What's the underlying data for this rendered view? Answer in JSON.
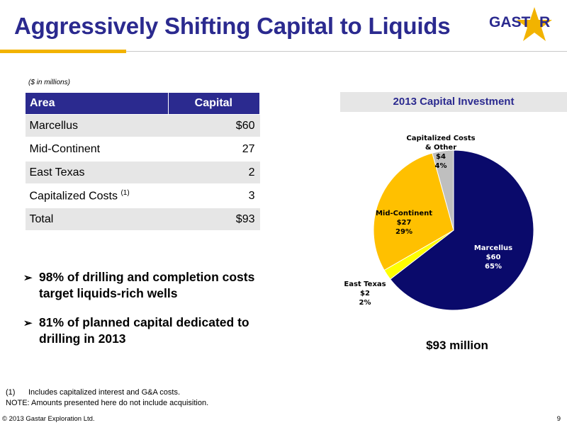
{
  "title": "Aggressively Shifting Capital to Liquids",
  "logo": {
    "text_left": "GAST",
    "text_right": "R"
  },
  "units_note": "($ in millions)",
  "table": {
    "headers": [
      "Area",
      "Capital"
    ],
    "rows": [
      {
        "area": "Marcellus",
        "capital": "$60"
      },
      {
        "area": "Mid-Continent",
        "capital": "27"
      },
      {
        "area": "East Texas",
        "capital": "2"
      },
      {
        "area": "Capitalized Costs",
        "footnote_mark": "(1)",
        "capital": "3"
      },
      {
        "area": "Total",
        "capital": "$93"
      }
    ]
  },
  "bullets": [
    {
      "line1": "98% of drilling and completion costs",
      "line2": "target liquids-rich wells"
    },
    {
      "line1": "81% of planned capital dedicated to",
      "line2": "drilling in 2013"
    }
  ],
  "chart_title": "2013 Capital Investment",
  "chart_total": "$93 million",
  "chart_data": {
    "type": "pie",
    "title": "2013 Capital Investment",
    "slices": [
      {
        "label": "Marcellus",
        "value": 60,
        "value_label": "$60",
        "percent": 65,
        "percent_label": "65%",
        "color": "#0a0a6b"
      },
      {
        "label": "East Texas",
        "value": 2,
        "value_label": "$2",
        "percent": 2,
        "percent_label": "2%",
        "color": "#ffff00"
      },
      {
        "label": "Mid-Continent",
        "value": 27,
        "value_label": "$27",
        "percent": 29,
        "percent_label": "29%",
        "color": "#ffc000"
      },
      {
        "label": "Capitalized Costs & Other",
        "label_lines": [
          "Capitalized Costs",
          "& Other"
        ],
        "value": 4,
        "value_label": "$4",
        "percent": 4,
        "percent_label": "4%",
        "color": "#bfbfbf"
      }
    ]
  },
  "footnotes": {
    "num": "(1)",
    "text": "Includes capitalized interest and G&A costs.",
    "note": "NOTE:  Amounts presented here do not include acquisition."
  },
  "copyright": "© 2013 Gastar Exploration Ltd.",
  "page_number": "9"
}
